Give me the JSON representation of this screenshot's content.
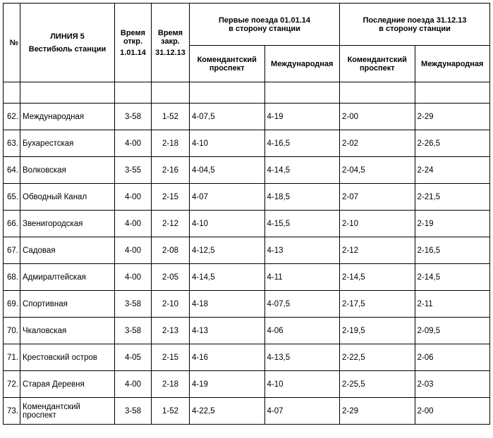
{
  "headers": {
    "num": "№",
    "line_title": "ЛИНИЯ 5",
    "vestibule": "Вестибюль станции",
    "open_label": "Время откр.",
    "open_date": "1.01.14",
    "close_label": "Время закр.",
    "close_date": "31.12.13",
    "first_trains": "Первые поезда 01.01.14",
    "first_trains_sub": "в сторону станции",
    "last_trains": "Последние поезда 31.12.13",
    "last_trains_sub": "в сторону станции",
    "dir1": "Комендантский проспект",
    "dir2": "Международная"
  },
  "rows": [
    {
      "n": "62.",
      "station": "Международная",
      "open": "3-58",
      "close": "1-52",
      "f1": "4-07,5",
      "f2": "4-19",
      "l1": "2-00",
      "l2": "2-29"
    },
    {
      "n": "63.",
      "station": "Бухарестская",
      "open": "4-00",
      "close": "2-18",
      "f1": "4-10",
      "f2": "4-16,5",
      "l1": "2-02",
      "l2": "2-26,5"
    },
    {
      "n": "64.",
      "station": "Волковская",
      "open": "3-55",
      "close": "2-16",
      "f1": "4-04,5",
      "f2": "4-14,5",
      "l1": "2-04,5",
      "l2": "2-24"
    },
    {
      "n": "65.",
      "station": "Обводный Канал",
      "open": "4-00",
      "close": "2-15",
      "f1": "4-07",
      "f2": "4-18,5",
      "l1": "2-07",
      "l2": "2-21,5"
    },
    {
      "n": "66.",
      "station": "Звенигородская",
      "open": "4-00",
      "close": "2-12",
      "f1": "4-10",
      "f2": "4-15,5",
      "l1": "2-10",
      "l2": "2-19"
    },
    {
      "n": "67.",
      "station": "Садовая",
      "open": "4-00",
      "close": "2-08",
      "f1": "4-12,5",
      "f2": "4-13",
      "l1": "2-12",
      "l2": "2-16,5"
    },
    {
      "n": "68.",
      "station": "Адмиралтейская",
      "open": "4-00",
      "close": "2-05",
      "f1": "4-14,5",
      "f2": "4-11",
      "l1": "2-14,5",
      "l2": "2-14,5"
    },
    {
      "n": "69.",
      "station": "Спортивная",
      "open": "3-58",
      "close": "2-10",
      "f1": "4-18",
      "f2": "4-07,5",
      "l1": "2-17,5",
      "l2": "2-11"
    },
    {
      "n": "70.",
      "station": "Чкаловская",
      "open": "3-58",
      "close": "2-13",
      "f1": "4-13",
      "f2": "4-06",
      "l1": "2-19,5",
      "l2": "2-09,5"
    },
    {
      "n": "71.",
      "station": "Крестовский остров",
      "open": "4-05",
      "close": "2-15",
      "f1": "4-16",
      "f2": "4-13,5",
      "l1": "2-22,5",
      "l2": "2-06"
    },
    {
      "n": "72.",
      "station": "Старая Деревня",
      "open": "4-00",
      "close": "2-18",
      "f1": "4-19",
      "f2": "4-10",
      "l1": "2-25,5",
      "l2": "2-03"
    },
    {
      "n": "73.",
      "station": "Комендантский проспект",
      "open": "3-58",
      "close": "1-52",
      "f1": "4-22,5",
      "f2": "4-07",
      "l1": "2-29",
      "l2": "2-00"
    }
  ]
}
